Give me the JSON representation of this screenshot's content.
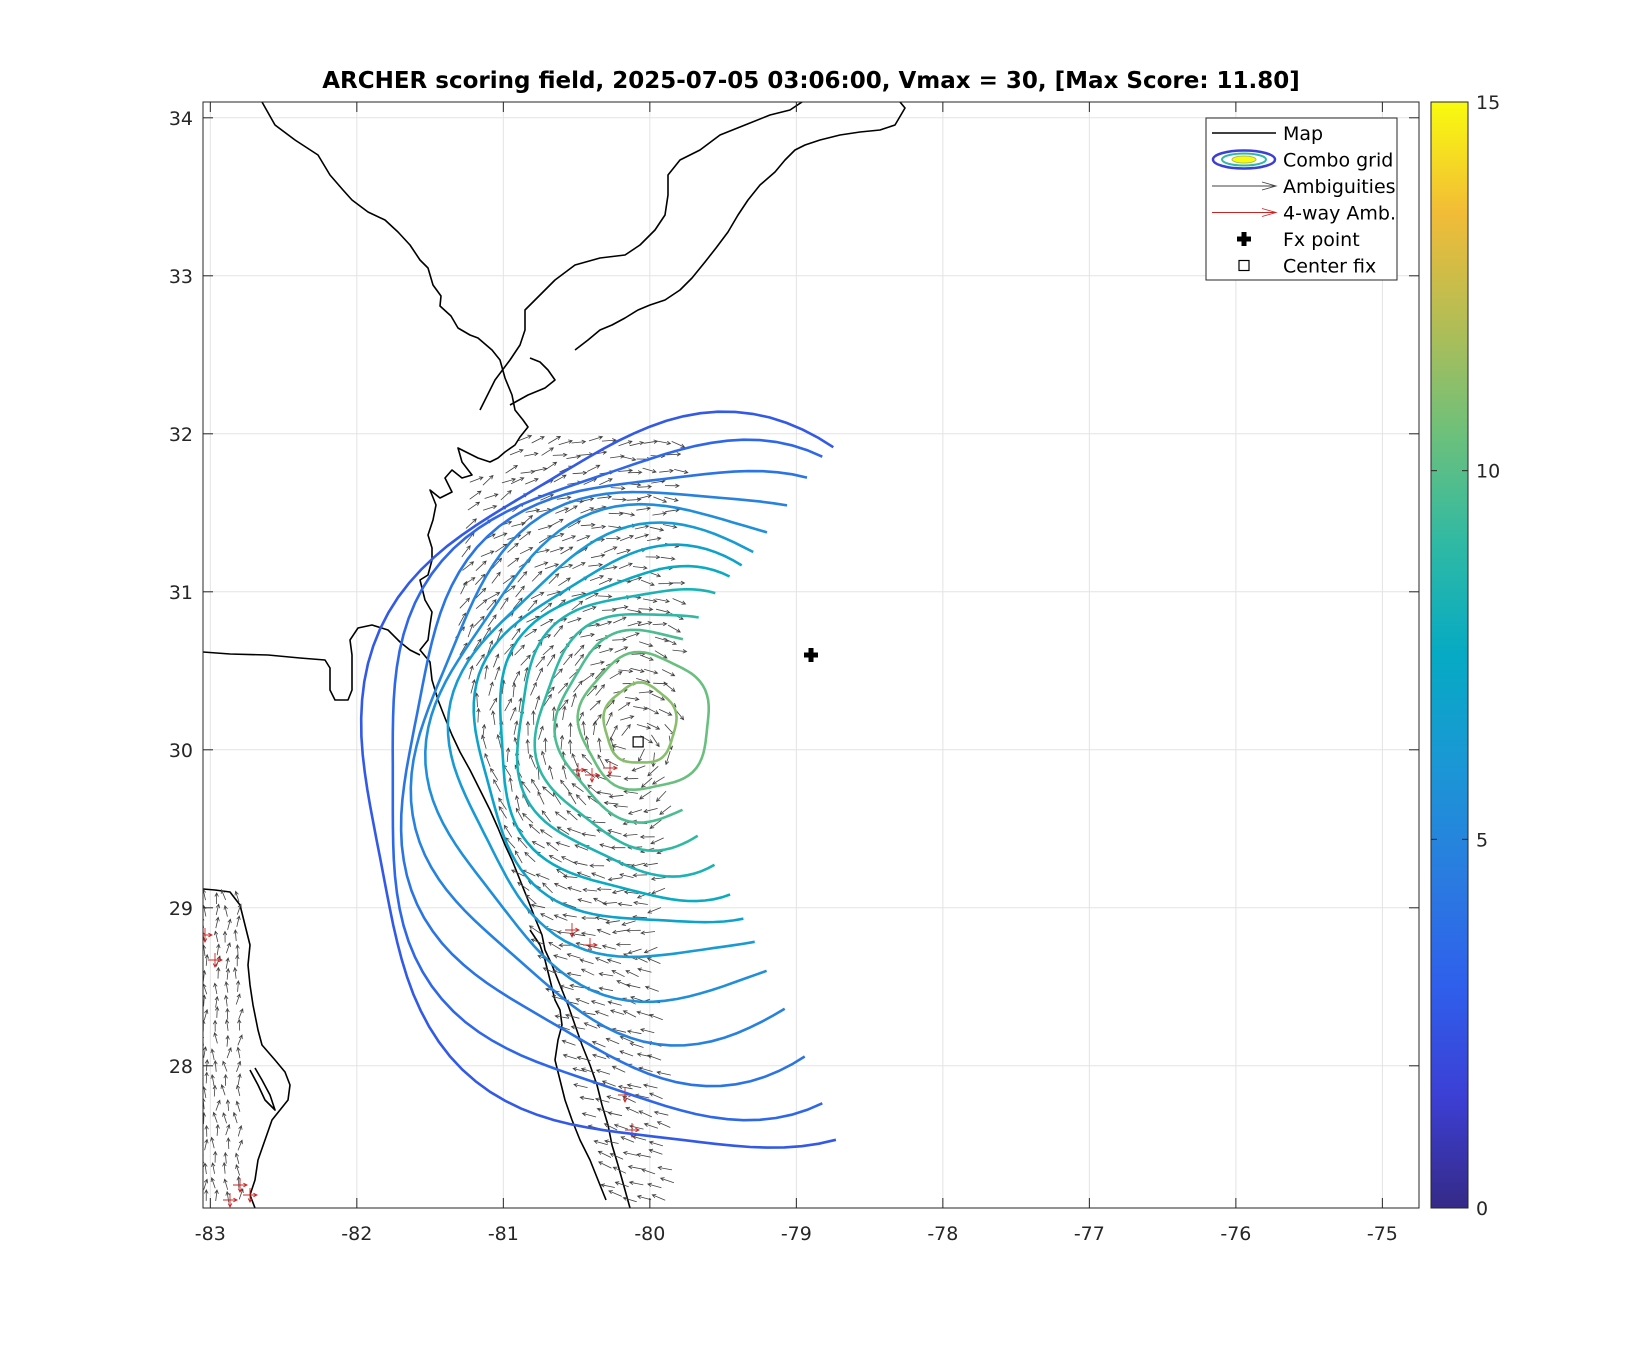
{
  "chart_data": {
    "type": "contour",
    "title": "ARCHER scoring field, 2025-07-05 03:06:00, Vmax = 30, [Max Score: 11.80]",
    "xlim": [
      -83.05,
      -74.75
    ],
    "ylim": [
      27.1,
      34.1
    ],
    "x_ticks": [
      -83,
      -82,
      -81,
      -80,
      -79,
      -78,
      -77,
      -76,
      -75
    ],
    "y_ticks": [
      28,
      29,
      30,
      31,
      32,
      33,
      34
    ],
    "grid": true,
    "legend": {
      "placement": "top-right",
      "entries": [
        "Map",
        "Combo grid",
        "Ambiguities",
        "4-way Amb.",
        "Fx point",
        "Center fix"
      ]
    },
    "colorbar": {
      "min": 0,
      "max": 15,
      "ticks": [
        0,
        5,
        10,
        15
      ],
      "colormap": "parula"
    },
    "fx_point": {
      "lon": -78.9,
      "lat": 30.6
    },
    "center_fix": {
      "lon": -80.08,
      "lat": 30.05
    },
    "score_peak": {
      "lon": -80.0,
      "lat": 30.1,
      "value": 11.8
    },
    "contour_levels": [
      11.1,
      10.4,
      9.7,
      9.0,
      8.3,
      7.6,
      6.9,
      6.2,
      5.5,
      4.8,
      4.1,
      3.4,
      2.7
    ]
  },
  "colors": {
    "map": "#000000",
    "ambiguities": "#404040",
    "four_way": "#cc2222",
    "gridline": "#e3e3e3"
  }
}
